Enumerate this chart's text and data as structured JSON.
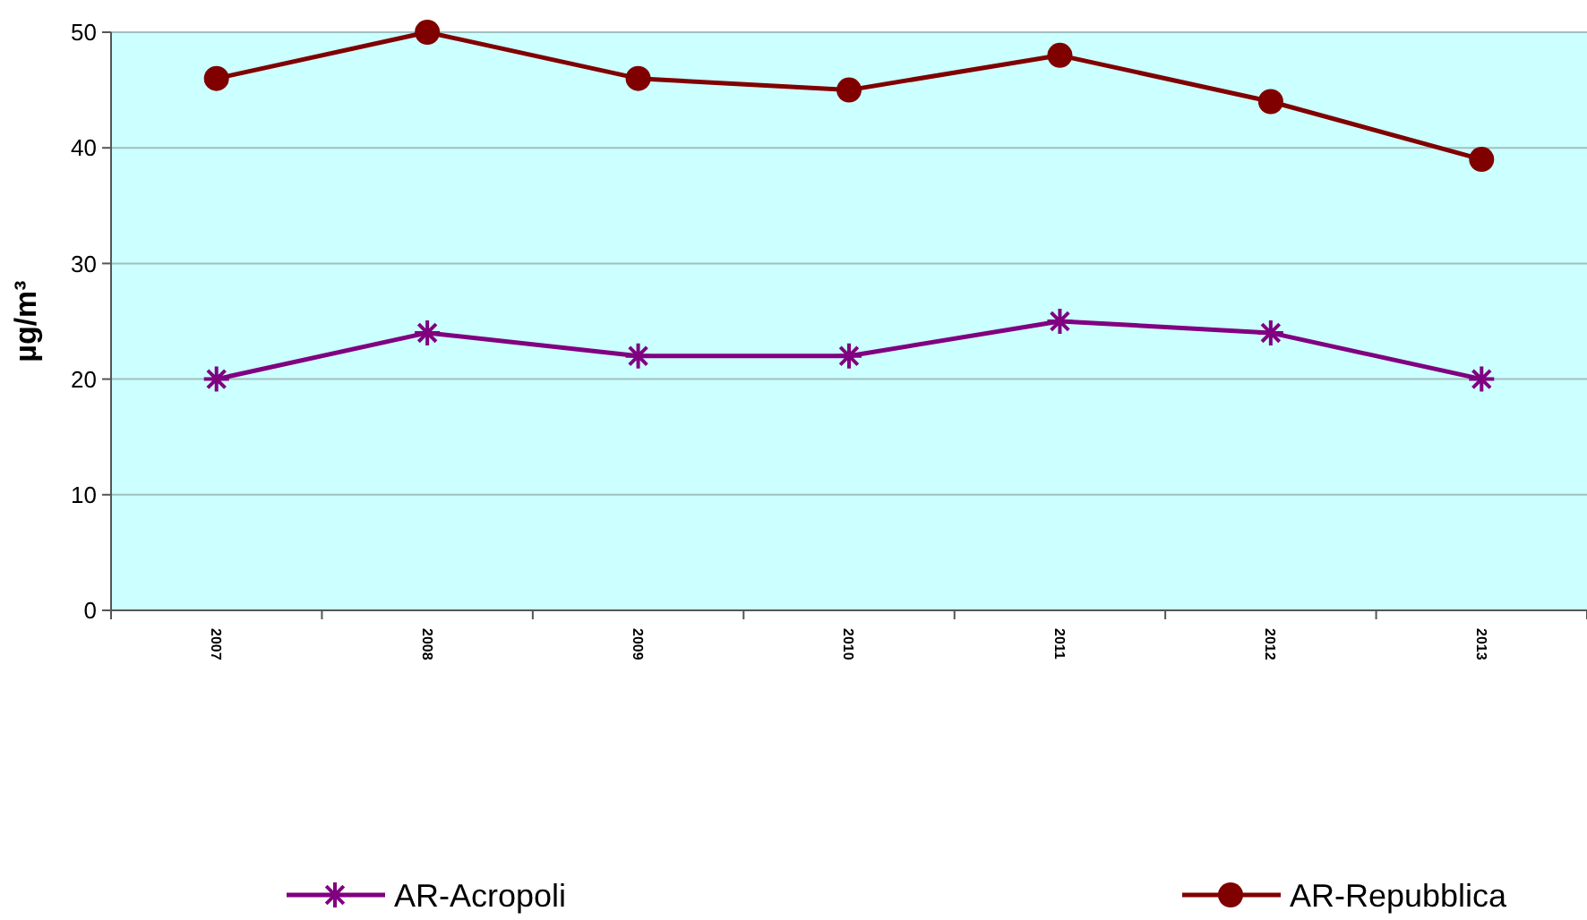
{
  "chart_data": {
    "type": "line",
    "ylabel": "µg/m³",
    "categories": [
      "2007",
      "2008",
      "2009",
      "2010",
      "2011",
      "2012",
      "2013"
    ],
    "series": [
      {
        "name": "AR-Acropoli",
        "color": "#800080",
        "marker": "cross",
        "values": [
          20,
          24,
          22,
          22,
          25,
          24,
          20
        ]
      },
      {
        "name": "AR-Repubblica",
        "color": "#800000",
        "marker": "circle",
        "values": [
          46,
          50,
          46,
          45,
          48,
          44,
          39
        ]
      }
    ],
    "ylim": [
      0,
      50
    ],
    "yticks": [
      0,
      10,
      20,
      30,
      40,
      50
    ],
    "grid": "y",
    "legend": "bottom"
  }
}
